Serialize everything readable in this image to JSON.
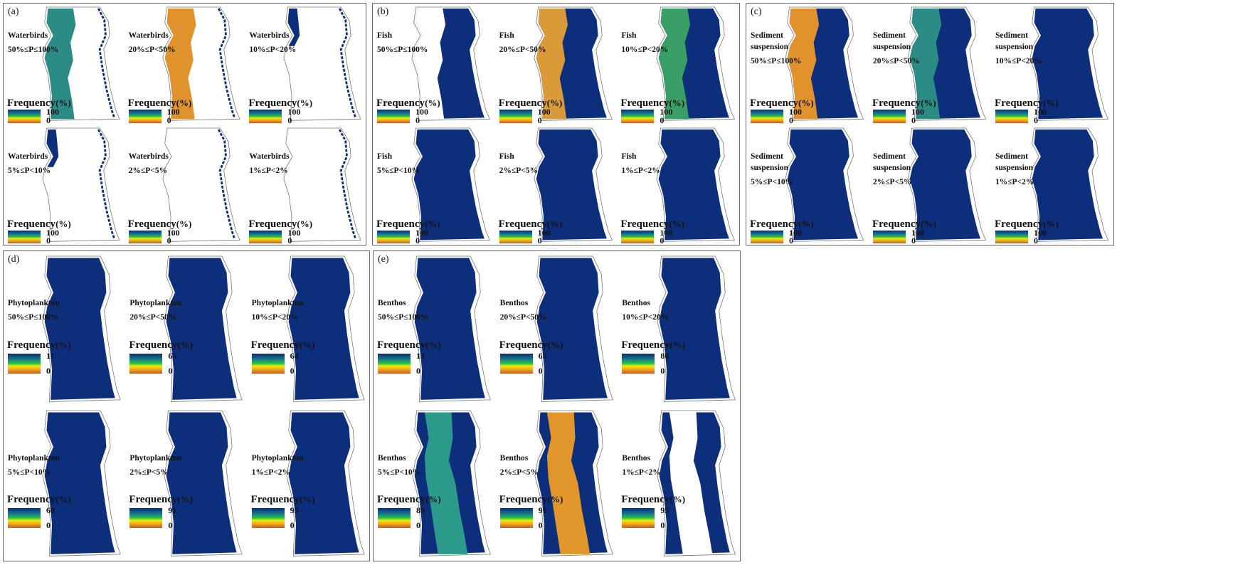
{
  "legend_title": "Frequency",
  "legend_unit": "(%)",
  "colors": {
    "blue": "#0d2e7a",
    "teal": "#2b8c86",
    "orange": "#e0922c",
    "green": "#3a9f66",
    "white": "#ffffff",
    "outline": "#777777"
  },
  "panels": [
    {
      "letter": "(a)",
      "row": "top",
      "maps": [
        {
          "species": "Waterbirds",
          "range": "50%≤P≤100%",
          "max": "100",
          "min": "0",
          "fill": "#ffffff",
          "overlay": {
            "shape": "left",
            "color": "#2b8c86"
          },
          "edge": "#0d2e7a"
        },
        {
          "species": "Waterbirds",
          "range": "20%≤P<50%",
          "max": "100",
          "min": "0",
          "fill": "#ffffff",
          "overlay": {
            "shape": "left",
            "color": "#e0922c"
          },
          "edge": "#0d2e7a"
        },
        {
          "species": "Waterbirds",
          "range": "10%≤P<20%",
          "max": "100",
          "min": "0",
          "fill": "#ffffff",
          "overlay": {
            "shape": "leftthin",
            "color": "#0d2e7a"
          },
          "edge": "#0d2e7a"
        },
        {
          "species": "Waterbirds",
          "range": "5%≤P<10%",
          "max": "100",
          "min": "0",
          "fill": "#ffffff",
          "overlay": {
            "shape": "leftthin",
            "color": "#0d2e7a"
          },
          "edge": "#0d2e7a"
        },
        {
          "species": "Waterbirds",
          "range": "2%≤P<5%",
          "max": "100",
          "min": "0",
          "fill": "#ffffff",
          "overlay": null,
          "edge": "#0d2e7a"
        },
        {
          "species": "Waterbirds",
          "range": "1%≤P<2%",
          "max": "100",
          "min": "0",
          "fill": "#ffffff",
          "overlay": null,
          "edge": "#0d2e7a"
        }
      ]
    },
    {
      "letter": "(b)",
      "row": "top",
      "maps": [
        {
          "species": "Fish",
          "range": "50%≤P≤100%",
          "max": "100",
          "min": "0",
          "fill": "#0d2e7a",
          "overlay": {
            "shape": "left",
            "color": "#ffffff"
          },
          "edge": null
        },
        {
          "species": "Fish",
          "range": "20%≤P<50%",
          "max": "100",
          "min": "0",
          "fill": "#0d2e7a",
          "overlay": {
            "shape": "left",
            "color": "#d99a3a"
          },
          "edge": null
        },
        {
          "species": "Fish",
          "range": "10%≤P<20%",
          "max": "100",
          "min": "0",
          "fill": "#0d2e7a",
          "overlay": {
            "shape": "left",
            "color": "#3a9f66"
          },
          "edge": null
        },
        {
          "species": "Fish",
          "range": "5%≤P<10%",
          "max": "100",
          "min": "0",
          "fill": "#0d2e7a",
          "overlay": null,
          "edge": null
        },
        {
          "species": "Fish",
          "range": "2%≤P<5%",
          "max": "100",
          "min": "0",
          "fill": "#0d2e7a",
          "overlay": null,
          "edge": null
        },
        {
          "species": "Fish",
          "range": "1%≤P<2%",
          "max": "100",
          "min": "0",
          "fill": "#0d2e7a",
          "overlay": null,
          "edge": null
        }
      ]
    },
    {
      "letter": "(c)",
      "row": "top",
      "maps": [
        {
          "species": "Sediment suspension",
          "range": "50%≤P≤100%",
          "max": "100",
          "min": "0",
          "fill": "#0d2e7a",
          "overlay": {
            "shape": "left",
            "color": "#e0922c"
          },
          "edge": null
        },
        {
          "species": "Sediment suspension",
          "range": "20%≤P<50%",
          "max": "100",
          "min": "0",
          "fill": "#0d2e7a",
          "overlay": {
            "shape": "left",
            "color": "#2b8c86"
          },
          "edge": null
        },
        {
          "species": "Sediment suspension",
          "range": "10%≤P<20%",
          "max": "100",
          "min": "0",
          "fill": "#0d2e7a",
          "overlay": null,
          "edge": null
        },
        {
          "species": "Sediment suspension",
          "range": "5%≤P<10%",
          "max": "100",
          "min": "0",
          "fill": "#0d2e7a",
          "overlay": null,
          "edge": null
        },
        {
          "species": "Sediment suspension",
          "range": "2%≤P<5%",
          "max": "100",
          "min": "0",
          "fill": "#0d2e7a",
          "overlay": null,
          "edge": null
        },
        {
          "species": "Sediment suspension",
          "range": "1%≤P<2%",
          "max": "100",
          "min": "0",
          "fill": "#0d2e7a",
          "overlay": null,
          "edge": null
        }
      ]
    },
    {
      "letter": "(d)",
      "row": "bot",
      "maps": [
        {
          "species": "Phytoplankton",
          "range": "50%≤P≤100%",
          "max": "11",
          "min": "0",
          "fill": "#0d2e7a",
          "overlay": null,
          "edge": null
        },
        {
          "species": "Phytoplankton",
          "range": "20%≤P<50%",
          "max": "65",
          "min": "0",
          "fill": "#0d2e7a",
          "overlay": null,
          "edge": null
        },
        {
          "species": "Phytoplankton",
          "range": "10%≤P<20%",
          "max": "64",
          "min": "0",
          "fill": "#0d2e7a",
          "overlay": null,
          "edge": null
        },
        {
          "species": "Phytoplankton",
          "range": "5%≤P<10%",
          "max": "68",
          "min": "0",
          "fill": "#0d2e7a",
          "overlay": null,
          "edge": null
        },
        {
          "species": "Phytoplankton",
          "range": "2%≤P<5%",
          "max": "91",
          "min": "0",
          "fill": "#0d2e7a",
          "overlay": null,
          "edge": null
        },
        {
          "species": "Phytoplankton",
          "range": "1%≤P<2%",
          "max": "95",
          "min": "0",
          "fill": "#0d2e7a",
          "overlay": null,
          "edge": null
        }
      ]
    },
    {
      "letter": "(e)",
      "row": "bot",
      "maps": [
        {
          "species": "Benthos",
          "range": "50%≤P≤100%",
          "max": "13",
          "min": "0",
          "fill": "#0d2e7a",
          "overlay": null,
          "edge": null
        },
        {
          "species": "Benthos",
          "range": "20%≤P<50%",
          "max": "65",
          "min": "0",
          "fill": "#0d2e7a",
          "overlay": null,
          "edge": null
        },
        {
          "species": "Benthos",
          "range": "10%≤P<20%",
          "max": "86",
          "min": "0",
          "fill": "#0d2e7a",
          "overlay": null,
          "edge": null
        },
        {
          "species": "Benthos",
          "range": "5%≤P<10%",
          "max": "89",
          "min": "0",
          "fill": "#0d2e7a",
          "overlay": {
            "shape": "center",
            "color": "#2b9a8a"
          },
          "edge": null
        },
        {
          "species": "Benthos",
          "range": "2%≤P<5%",
          "max": "91",
          "min": "0",
          "fill": "#0d2e7a",
          "overlay": {
            "shape": "center",
            "color": "#e0962a"
          },
          "edge": null
        },
        {
          "species": "Benthos",
          "range": "1%≤P<2%",
          "max": "95",
          "min": "0",
          "fill": "#0d2e7a",
          "overlay": {
            "shape": "center",
            "color": "#ffffff"
          },
          "edge": null
        }
      ]
    }
  ]
}
